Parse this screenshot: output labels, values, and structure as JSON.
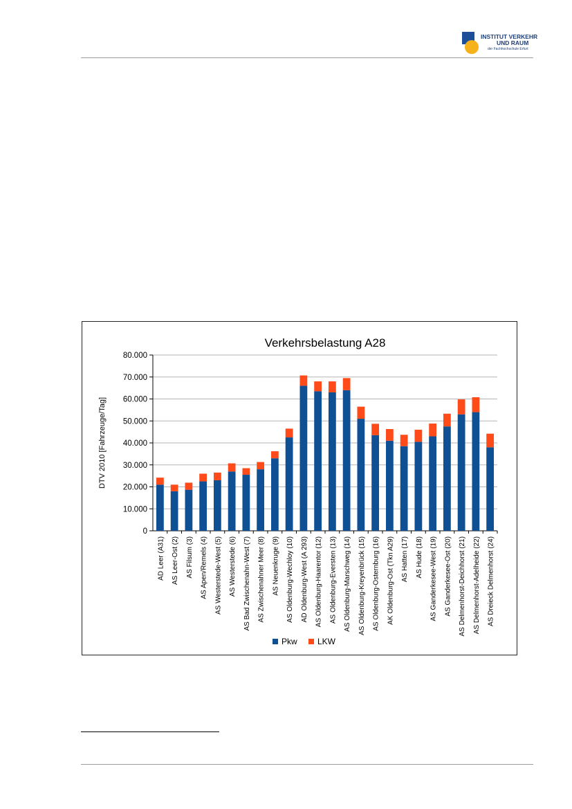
{
  "logo": {
    "line1": "INSTITUT VERKEHR",
    "line2": "UND RAUM",
    "line3": "der Fachhochschule Erfurt"
  },
  "colors": {
    "pkw": "#0f4f94",
    "lkw": "#ff4a1a",
    "grid": "#b3b3b3"
  },
  "chart_data": {
    "type": "bar",
    "stacked": true,
    "title": "Verkehrsbelastung A28",
    "xlabel": "",
    "ylabel": "DTV 2010 [Fahrzeuge/Tag]",
    "ylim": [
      0,
      80000
    ],
    "yticks": [
      0,
      10000,
      20000,
      30000,
      40000,
      50000,
      60000,
      70000,
      80000
    ],
    "ytick_labels": [
      "0",
      "10.000",
      "20.000",
      "30.000",
      "40.000",
      "50.000",
      "60.000",
      "70.000",
      "80.000"
    ],
    "grid": true,
    "legend": "bottom",
    "categories": [
      "AD Leer (A31)",
      "AS Leer-Ost (2)",
      "AS Filsum (3)",
      "AS Apen/Remels (4)",
      "AS Westerstede-West (5)",
      "AS Westerstede (6)",
      "AS Bad Zwischenahn-West (7)",
      "AS Zwischenahner Meer (8)",
      "AS Neuenkruge (9)",
      "AS Oldenburg-Wechloy (10)",
      "AD Oldenburg-West (A 293)",
      "AS Oldenburg-Haarentor (12)",
      "AS Oldenburg-Eversten (13)",
      "AS Oldenburg-Marschweg (14)",
      "AS Oldenburg-Kreyenbrück (15)",
      "AS Oldenburg-Osternburg (16)",
      "AK Oldenburg-Ost (Tkn A29)",
      "AS Hatten (17)",
      "AS Hude (18)",
      "AS Ganderkesee-West (19)",
      "AS Ganderkesee-Ost (20)",
      "AS Delmenhorst-Deichhorst (21)",
      "AS Delmenhorst-Adelheide (22)",
      "AS Dreieck Delmenhorst (24)"
    ],
    "series": [
      {
        "name": "Pkw",
        "values": [
          21000,
          18000,
          18700,
          22500,
          23000,
          27000,
          25500,
          28000,
          33000,
          42500,
          66000,
          63500,
          63000,
          64000,
          51000,
          43500,
          41000,
          38500,
          40500,
          43000,
          47500,
          53000,
          54000,
          38000
        ]
      },
      {
        "name": "LKW",
        "values": [
          3200,
          3000,
          3200,
          3500,
          3500,
          3700,
          3000,
          3300,
          3200,
          4000,
          4700,
          4500,
          5000,
          5500,
          5500,
          5200,
          5300,
          5200,
          5500,
          5800,
          5800,
          6800,
          6800,
          6200
        ]
      }
    ]
  }
}
